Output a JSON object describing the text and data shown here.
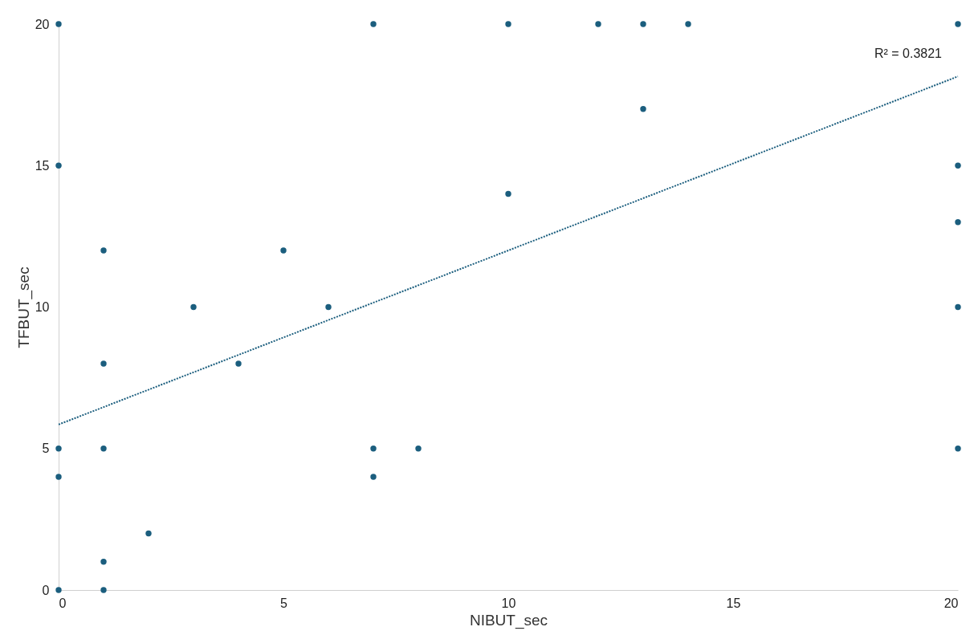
{
  "chart_data": {
    "type": "scatter",
    "xlabel": "NIBUT_sec",
    "ylabel": "TFBUT_sec",
    "x": [
      0,
      0,
      0,
      0,
      0,
      1,
      1,
      1,
      1,
      1,
      2,
      3,
      4,
      5,
      6,
      7,
      7,
      7,
      8,
      10,
      10,
      12,
      13,
      13,
      14,
      20,
      20,
      20,
      20,
      20
    ],
    "series": [
      {
        "color": "#1b5e7e",
        "marker": "circle",
        "values": [
          20,
          15,
          5,
          4,
          0,
          12,
          8,
          5,
          1,
          0,
          2,
          10,
          8,
          12,
          10,
          20,
          5,
          4,
          5,
          20,
          14,
          20,
          20,
          17,
          20,
          20,
          15,
          13,
          10,
          5
        ]
      },
      {
        "type": "line",
        "color": "#1b5e7e",
        "line_style": "dotted",
        "marker": "none",
        "x": [
          0,
          20
        ],
        "values": [
          5.85,
          18.15
        ]
      }
    ],
    "annotations": [
      {
        "text": "R² = 0.3821",
        "x": 20,
        "y": 18.15
      }
    ],
    "xlim": [
      0,
      20
    ],
    "xticks": [
      0,
      5,
      10,
      15,
      20
    ],
    "ylim": [
      0,
      20
    ],
    "yticks": [
      0,
      5,
      10,
      15,
      20
    ],
    "grid": false,
    "legend": false
  }
}
